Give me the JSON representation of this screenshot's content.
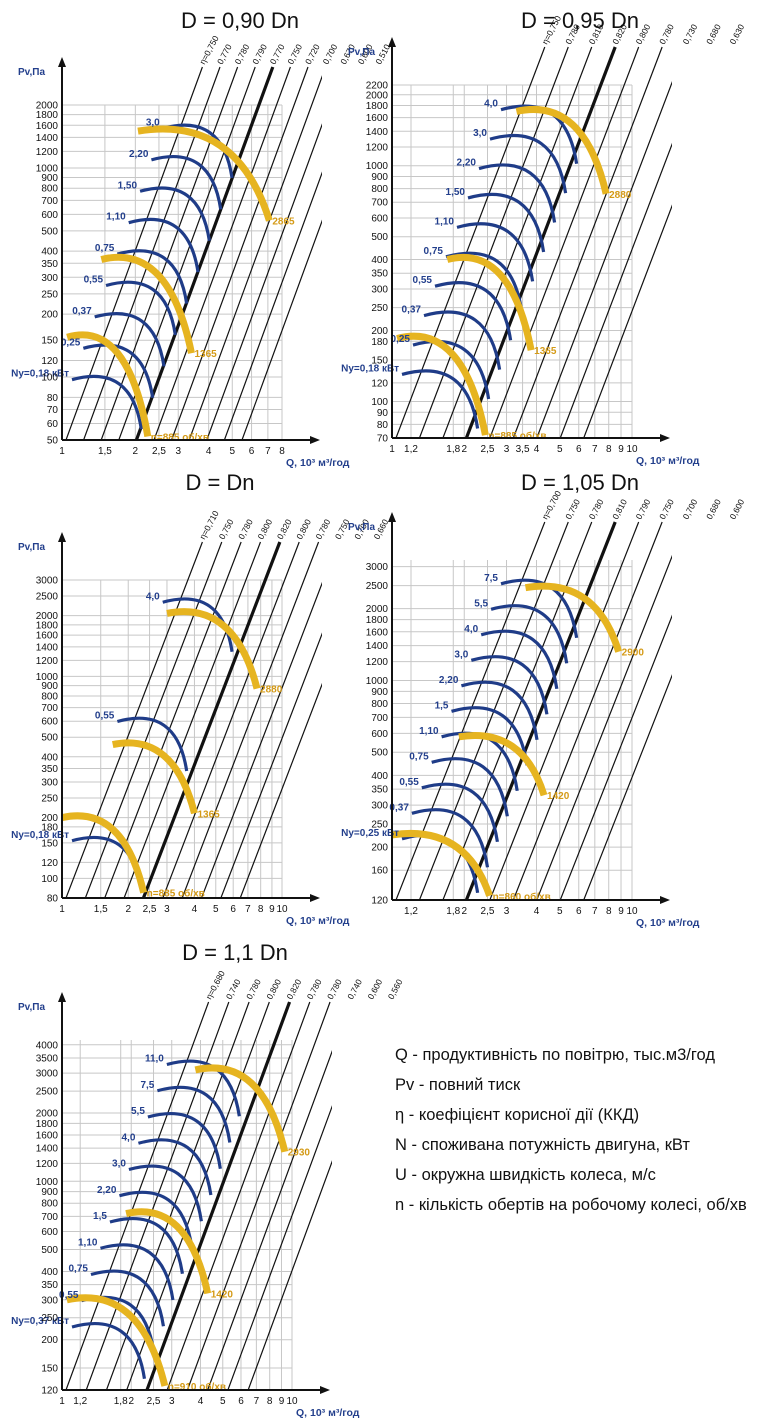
{
  "colors": {
    "grid": "#c7c7c7",
    "axis": "#111111",
    "power": "#1f3c88",
    "speed": "#e6b420",
    "label": "#233f8c",
    "speedLabel": "#d49a16"
  },
  "legend": [
    "Q - продуктивність по повітрю, тыс.м3/год",
    "Pv - повний тиск",
    "η - коефіцієнт корисної дії (ККД)",
    "N - споживана потужність двигуна, кВт",
    "U - окружна швидкість колеса, м/с",
    "n - кількість обертів на робочому колесі, об/хв"
  ],
  "chart_data": [
    {
      "type": "line",
      "title": "D = 0,90 Dn",
      "ylabel": "Pv,Па",
      "xlabel": "Q, 10³ м³/год",
      "x_ticks": [
        "1",
        "1,5",
        "2",
        "2,5",
        "3",
        "4",
        "5",
        "6",
        "7",
        "8"
      ],
      "y_ticks": [
        "50",
        "60",
        "70",
        "80",
        "100",
        "120",
        "150",
        "200",
        "250",
        "300",
        "350",
        "400",
        "500",
        "600",
        "700",
        "800",
        "900",
        "1000",
        "1200",
        "1400",
        "1600",
        "1800",
        "2000"
      ],
      "xlim": [
        1,
        8
      ],
      "ylim": [
        50,
        2000
      ],
      "efficiency_lines": [
        "η=0,750",
        "0,770",
        "0,780",
        "0,790",
        "0,770",
        "0,750",
        "0,720",
        "0,700",
        "0,670",
        "0,600",
        "0,510"
      ],
      "power_labels": [
        "Ny=0,18 кВт",
        "0,25",
        "0,37",
        "0,55",
        "0,75",
        "1,10",
        "1,50",
        "2,20",
        "3,0"
      ],
      "speed_curves": [
        {
          "label": "n=885 об/хв",
          "from": [
            1.05,
            155
          ],
          "to": [
            2.25,
            52
          ]
        },
        {
          "label": "1365",
          "from": [
            1.45,
            365
          ],
          "to": [
            3.4,
            130
          ]
        },
        {
          "label": "2865",
          "from": [
            2.05,
            1500
          ],
          "to": [
            7.1,
            560
          ]
        }
      ]
    },
    {
      "type": "line",
      "title": "D = 0,95 Dn",
      "ylabel": "Pv,Па",
      "xlabel": "Q, 10³ м³/год",
      "x_ticks": [
        "1",
        "1,2",
        "1,8",
        "2",
        "2,5",
        "3",
        "3,5",
        "4",
        "5",
        "6",
        "7",
        "8",
        "9",
        "10"
      ],
      "y_ticks": [
        "70",
        "80",
        "90",
        "100",
        "120",
        "150",
        "180",
        "200",
        "250",
        "300",
        "350",
        "400",
        "500",
        "600",
        "700",
        "800",
        "900",
        "1000",
        "1200",
        "1400",
        "1600",
        "1800",
        "2000",
        "2200"
      ],
      "xlim": [
        1,
        10
      ],
      "ylim": [
        70,
        2200
      ],
      "efficiency_lines": [
        "η=0,750",
        "0,780",
        "0,810",
        "0,820",
        "0,800",
        "0,780",
        "0,730",
        "0,680",
        "0,630"
      ],
      "power_labels": [
        "Ny=0,18 кВт",
        "0,25",
        "0,37",
        "0,55",
        "0,75",
        "1,10",
        "1,50",
        "2,20",
        "3,0",
        "4,0"
      ],
      "speed_curves": [
        {
          "label": "n=885 об/хв",
          "from": [
            1.05,
            185
          ],
          "to": [
            2.45,
            72
          ]
        },
        {
          "label": "1365",
          "from": [
            1.7,
            400
          ],
          "to": [
            3.8,
            165
          ]
        },
        {
          "label": "2880",
          "from": [
            3.3,
            1700
          ],
          "to": [
            7.8,
            760
          ]
        }
      ]
    },
    {
      "type": "line",
      "title": "D = Dn",
      "ylabel": "Pv,Па",
      "xlabel": "Q, 10³ м³/год",
      "x_ticks": [
        "1",
        "1,5",
        "2",
        "2,5",
        "3",
        "4",
        "5",
        "6",
        "7",
        "8",
        "9",
        "10"
      ],
      "y_ticks": [
        "80",
        "100",
        "120",
        "150",
        "180",
        "200",
        "250",
        "300",
        "350",
        "400",
        "500",
        "600",
        "700",
        "800",
        "900",
        "1000",
        "1200",
        "1400",
        "1600",
        "1800",
        "2000",
        "2500",
        "3000"
      ],
      "xlim": [
        1,
        10
      ],
      "ylim": [
        80,
        3000
      ],
      "efficiency_lines": [
        "η=0,710",
        "0,750",
        "0,780",
        "0,800",
        "0,820",
        "0,800",
        "0,780",
        "0,750",
        "0,700",
        "0,660"
      ],
      "power_labels": [
        "Ny=0,18 кВт",
        "0,55",
        "4,0"
      ],
      "speed_curves": [
        {
          "label": "n=885 об/хв",
          "from": [
            1.0,
            200
          ],
          "to": [
            2.35,
            85
          ]
        },
        {
          "label": "1365",
          "from": [
            1.7,
            460
          ],
          "to": [
            4.0,
            210
          ]
        },
        {
          "label": "2880",
          "from": [
            3.0,
            2050
          ],
          "to": [
            7.7,
            870
          ]
        }
      ]
    },
    {
      "type": "line",
      "title": "D = 1,05 Dn",
      "ylabel": "Pv,Па",
      "xlabel": "Q, 10³ м³/год",
      "x_ticks": [
        "1,2",
        "1,8",
        "2",
        "2,5",
        "3",
        "4",
        "5",
        "6",
        "7",
        "8",
        "9",
        "10"
      ],
      "y_ticks": [
        "120",
        "160",
        "200",
        "250",
        "300",
        "350",
        "400",
        "500",
        "600",
        "700",
        "800",
        "900",
        "1000",
        "1200",
        "1400",
        "1600",
        "1800",
        "2000",
        "2500",
        "3000"
      ],
      "xlim": [
        1,
        10
      ],
      "ylim": [
        120,
        3200
      ],
      "efficiency_lines": [
        "η=0,700",
        "0,750",
        "0,780",
        "0,810",
        "0,790",
        "0,750",
        "0,700",
        "0,680",
        "0,600"
      ],
      "power_labels": [
        "Ny=0,25 кВт",
        "0,37",
        "0,55",
        "0,75",
        "1,10",
        "1,5",
        "2,20",
        "3,0",
        "4,0",
        "5,5",
        "7,5"
      ],
      "speed_curves": [
        {
          "label": "n=860 об/хв",
          "from": [
            1.0,
            225
          ],
          "to": [
            2.55,
            125
          ]
        },
        {
          "label": "1420",
          "from": [
            1.9,
            580
          ],
          "to": [
            4.3,
            330
          ]
        },
        {
          "label": "2900",
          "from": [
            3.6,
            2450
          ],
          "to": [
            8.8,
            1320
          ]
        }
      ]
    },
    {
      "type": "line",
      "title": "D = 1,1 Dn",
      "ylabel": "Pv,Па",
      "xlabel": "Q, 10³ м³/год",
      "x_ticks": [
        "1",
        "1,2",
        "1,8",
        "2",
        "2,5",
        "3",
        "4",
        "5",
        "6",
        "7",
        "8",
        "9",
        "10"
      ],
      "y_ticks": [
        "120",
        "150",
        "200",
        "250",
        "300",
        "350",
        "400",
        "500",
        "600",
        "700",
        "800",
        "900",
        "1000",
        "1200",
        "1400",
        "1600",
        "1800",
        "2000",
        "2500",
        "3000",
        "3500",
        "4000"
      ],
      "xlim": [
        1,
        10
      ],
      "ylim": [
        120,
        4200
      ],
      "efficiency_lines": [
        "η=0,680",
        "0,740",
        "0,780",
        "0,800",
        "0,820",
        "0,780",
        "0,780",
        "0,740",
        "0,600",
        "0,560"
      ],
      "power_labels": [
        "Ny=0,37 кВт",
        "0,55",
        "0,75",
        "1,10",
        "1,5",
        "2,20",
        "3,0",
        "4,0",
        "5,5",
        "7,5",
        "11,0"
      ],
      "speed_curves": [
        {
          "label": "n=910 об/хв",
          "from": [
            1.05,
            300
          ],
          "to": [
            2.8,
            125
          ]
        },
        {
          "label": "1420",
          "from": [
            1.9,
            720
          ],
          "to": [
            4.3,
            320
          ]
        },
        {
          "label": "2930",
          "from": [
            3.8,
            3100
          ],
          "to": [
            9.3,
            1350
          ]
        }
      ]
    }
  ]
}
